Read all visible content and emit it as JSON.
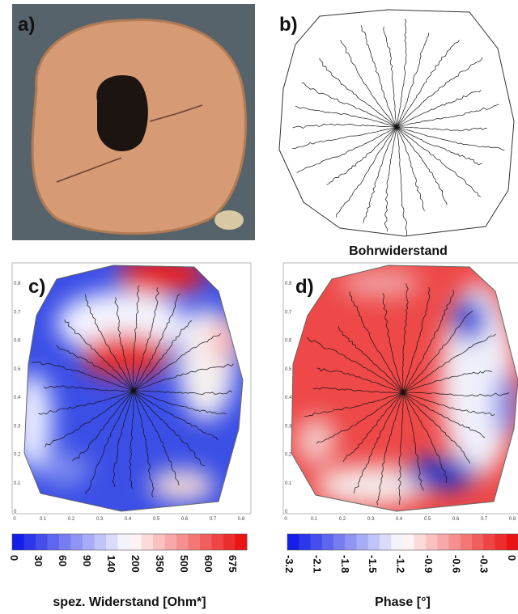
{
  "panels": {
    "a": {
      "label": "a)"
    },
    "b": {
      "label": "b)",
      "title": "Bohrwiderstand"
    },
    "c": {
      "label": "c)",
      "y_ticks": [
        "0",
        "0.1",
        "0.2",
        "0.3",
        "0.4",
        "0.5",
        "0.6",
        "0.7",
        "0.8"
      ],
      "x_ticks": [
        "0",
        "0.1",
        "0.2",
        "0.3",
        "0.4",
        "0.5",
        "0.6",
        "0.7",
        "0.8"
      ],
      "colorbar": {
        "ticks": [
          "0",
          "30",
          "60",
          "90",
          "140",
          "200",
          "350",
          "500",
          "600",
          "675"
        ],
        "title": "spez. Widerstand [Ohm*]"
      }
    },
    "d": {
      "label": "d)",
      "y_ticks": [
        "0",
        "0.1",
        "0.2",
        "0.3",
        "0.4",
        "0.5",
        "0.6",
        "0.7",
        "0.8"
      ],
      "x_ticks": [
        "0",
        "0.1",
        "0.2",
        "0.3",
        "0.4",
        "0.5",
        "0.6",
        "0.7",
        "0.8"
      ],
      "colorbar": {
        "ticks": [
          "-3.2",
          "-2.1",
          "-1.8",
          "-1.5",
          "-1.2",
          "-0.9",
          "-0.6",
          "-0.3",
          "0"
        ],
        "title": "Phase [°]"
      }
    }
  }
}
